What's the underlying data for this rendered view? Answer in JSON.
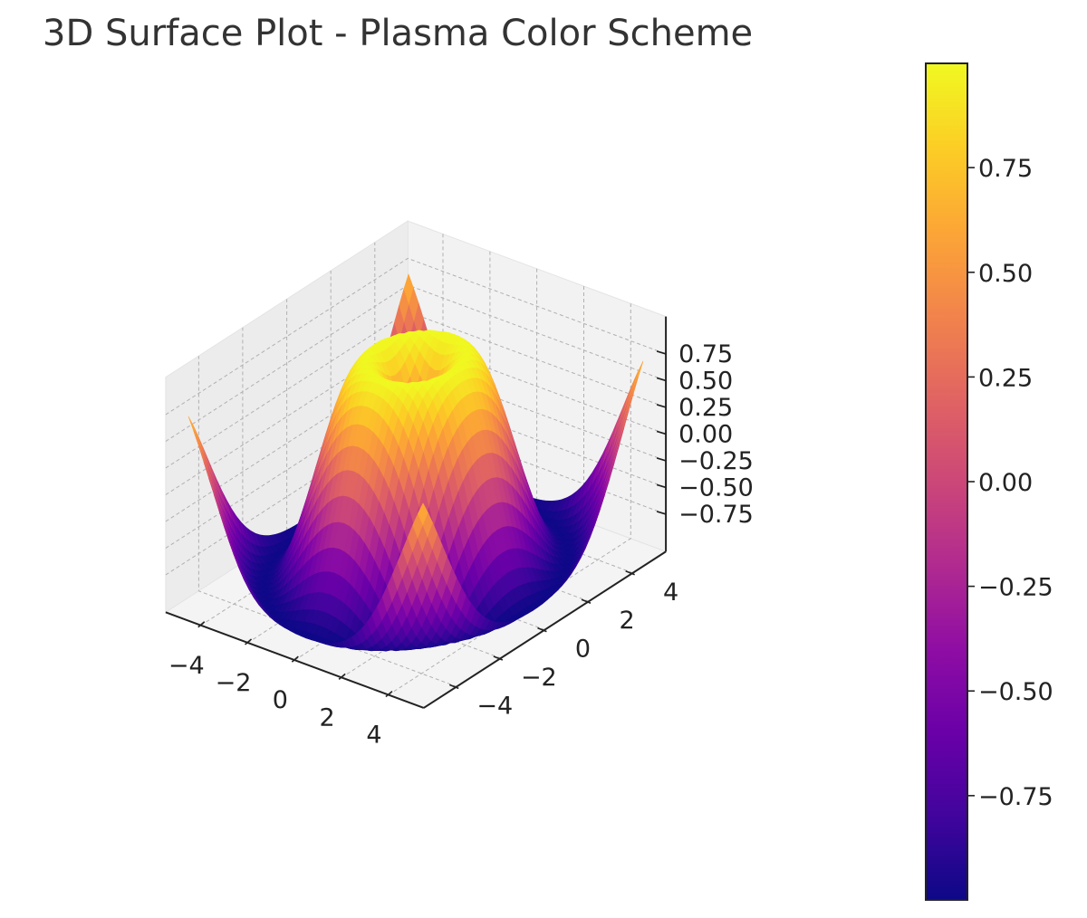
{
  "chart_data": {
    "type": "surface",
    "title": "3D Surface Plot - Plasma Color Scheme",
    "function": "z = sin(sqrt(x^2 + y^2))",
    "colormap": "plasma",
    "x_range": [
      -5,
      5
    ],
    "y_range": [
      -5,
      5
    ],
    "z_range": [
      -0.999,
      0.999
    ],
    "grid": true,
    "x_ticks": [
      "−4",
      "−2",
      "0",
      "2",
      "4"
    ],
    "y_ticks": [
      "−4",
      "−2",
      "0",
      "2",
      "4"
    ],
    "z_ticks": [
      "0.75",
      "0.50",
      "0.25",
      "0.00",
      "−0.25",
      "−0.50",
      "−0.75"
    ],
    "colorbar": {
      "ticks": [
        "0.75",
        "0.50",
        "0.25",
        "0.00",
        "−0.25",
        "−0.50",
        "−0.75"
      ],
      "range": [
        -0.999,
        0.999
      ]
    },
    "sample_points": [
      {
        "x": 0,
        "y": 0,
        "z": 0.0
      },
      {
        "x": 1.6,
        "y": 0,
        "z": 0.9996
      },
      {
        "x": 3.14,
        "y": 0,
        "z": 0.0
      },
      {
        "x": 4.71,
        "y": 0,
        "z": -1.0
      },
      {
        "x": 5,
        "y": 5,
        "z": 0.7
      }
    ]
  },
  "colors": {
    "pane": "#f2f2f2",
    "grid": "#b0b0b0",
    "axis": "#222222",
    "title": "#333333"
  }
}
